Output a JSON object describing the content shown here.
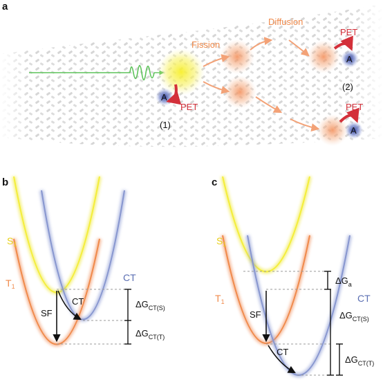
{
  "panels": {
    "a": {
      "label": "a",
      "fission": "Fission",
      "diffusion": "Diffusion",
      "pet_1": "PET",
      "pet_2": "PET",
      "pet_3": "PET",
      "acceptor": "A",
      "site_1": "(1)",
      "site_2": "(2)"
    },
    "b": {
      "label": "b",
      "s1": "S",
      "s1_sub": "1",
      "t1": "T",
      "t1_sub": "1",
      "ct_curve": "CT",
      "sf": "SF",
      "ct_arrow": "CT",
      "dg_cts": "ΔG",
      "dg_cts_sub": "CT(S)",
      "dg_ctt": "ΔG",
      "dg_ctt_sub": "CT(T)"
    },
    "c": {
      "label": "c",
      "s1": "S",
      "s1_sub": "1",
      "t1": "T",
      "t1_sub": "1",
      "ct_curve": "CT",
      "sf": "SF",
      "ct_arrow": "CT",
      "dg_a": "ΔG",
      "dg_a_sub": "a",
      "dg_cts": "ΔG",
      "dg_cts_sub": "CT(S)",
      "dg_ctt": "ΔG",
      "dg_ctt_sub": "CT(T)"
    }
  },
  "colors": {
    "singlet": "#f4ee3a",
    "triplet": "#f08a4b",
    "charge_transfer": "#8796cf",
    "pet": "#d3303a",
    "photon": "#5dc35a",
    "acceptor": "#3b4ea8"
  }
}
